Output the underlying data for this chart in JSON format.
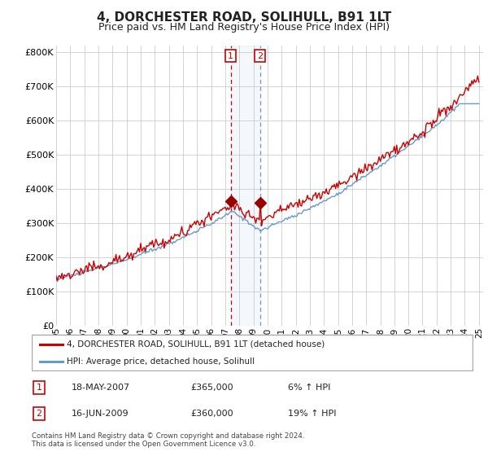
{
  "title": "4, DORCHESTER ROAD, SOLIHULL, B91 1LT",
  "subtitle": "Price paid vs. HM Land Registry's House Price Index (HPI)",
  "title_fontsize": 11,
  "subtitle_fontsize": 9,
  "ylabel_ticks": [
    "£0",
    "£100K",
    "£200K",
    "£300K",
    "£400K",
    "£500K",
    "£600K",
    "£700K",
    "£800K"
  ],
  "ytick_values": [
    0,
    100000,
    200000,
    300000,
    400000,
    500000,
    600000,
    700000,
    800000
  ],
  "ylim": [
    0,
    820000
  ],
  "xlim_start": 1995.0,
  "xlim_end": 2025.3,
  "line_color_property": "#cc0000",
  "line_color_hpi": "#6699cc",
  "purchase1_x": 2007.38,
  "purchase1_y": 365000,
  "purchase2_x": 2009.46,
  "purchase2_y": 360000,
  "legend_label_property": "4, DORCHESTER ROAD, SOLIHULL, B91 1LT (detached house)",
  "legend_label_hpi": "HPI: Average price, detached house, Solihull",
  "annotation1_num": "1",
  "annotation1_date": "18-MAY-2007",
  "annotation1_price": "£365,000",
  "annotation1_hpi": "6% ↑ HPI",
  "annotation2_num": "2",
  "annotation2_date": "16-JUN-2009",
  "annotation2_price": "£360,000",
  "annotation2_hpi": "19% ↑ HPI",
  "footer": "Contains HM Land Registry data © Crown copyright and database right 2024.\nThis data is licensed under the Open Government Licence v3.0.",
  "background_color": "#ffffff",
  "grid_color": "#cccccc"
}
